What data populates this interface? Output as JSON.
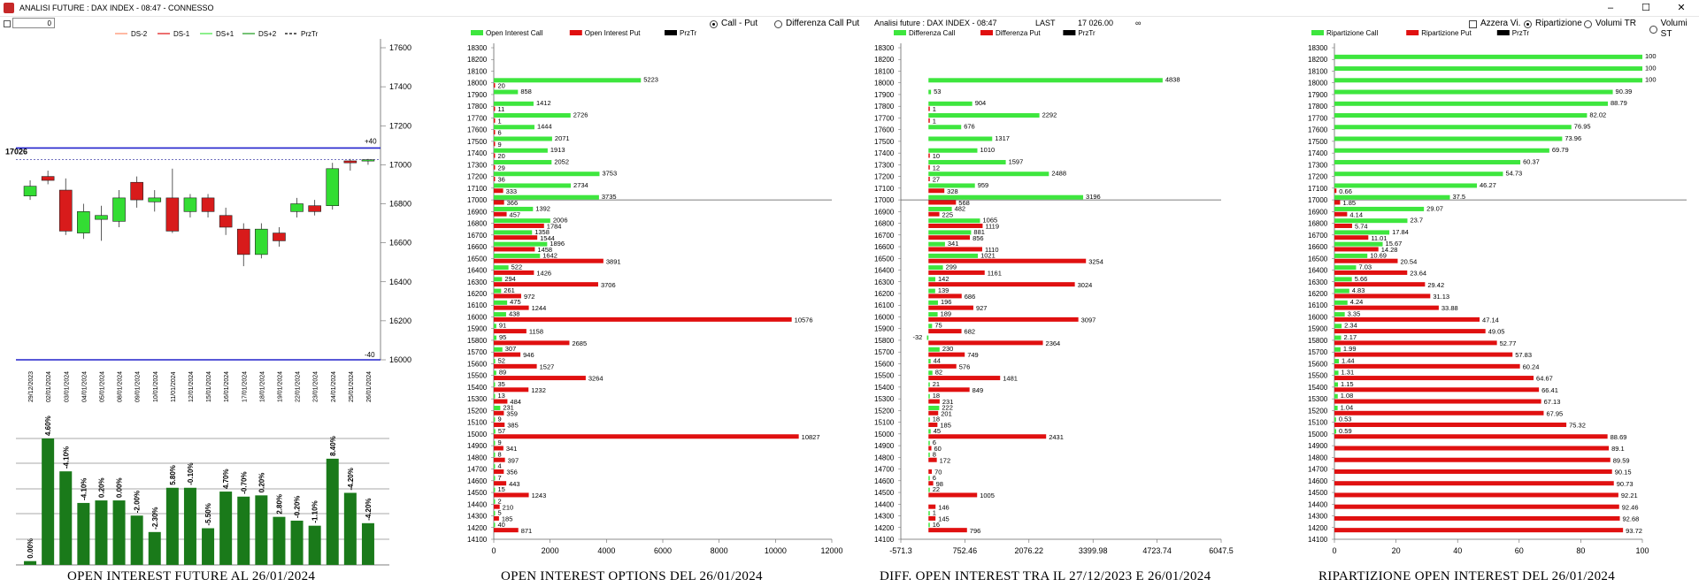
{
  "window": {
    "title": "ANALISI FUTURE : DAX INDEX - 08:47 - CONNESSO",
    "min": "–",
    "max": "☐",
    "close": "✕"
  },
  "topbar": {
    "input_value": "0"
  },
  "radios": {
    "callput": "Call - Put",
    "diffcallput": "Differenza Call Put",
    "azzera": "Azzera Vi.",
    "ripartizione": "Ripartizione",
    "volumi_tr": "Volumi TR",
    "volumi_st": "Volumi ST"
  },
  "header_info": {
    "label": "Analisi future : DAX INDEX - 08:47",
    "last_label": "LAST",
    "last_value": "17 026.00",
    "infinity": "∞"
  },
  "captions": {
    "future": "OPEN INTEREST FUTURE AL 26/01/2024",
    "options": "OPEN INTEREST OPTIONS DEL 26/01/2024",
    "diff": "DIFF. OPEN INTEREST TRA IL 27/12/2023 E 26/01/2024",
    "rip": "RIPARTIZIONE OPEN INTEREST DEL 26/01/2024"
  },
  "colors": {
    "green": "#3ee63e",
    "red": "#e01010",
    "candle_green": "#33dd33",
    "candle_red": "#d81b1b",
    "bar_green": "#1a7a1a",
    "blue": "#2222cc"
  },
  "chart_data": [
    {
      "type": "candlestick",
      "legend": [
        "DS-2",
        "DS-1",
        "DS+1",
        "DS+2",
        "PrzTr"
      ],
      "ylim": [
        16000,
        17600
      ],
      "y_ticks": [
        16000,
        16200,
        16400,
        16600,
        16800,
        17000,
        17200,
        17400,
        17600
      ],
      "price_label": "17026",
      "upper_label": "+40",
      "lower_label": "-40",
      "dates": [
        "29/12/2023",
        "02/01/2024",
        "03/01/2024",
        "04/01/2024",
        "05/01/2024",
        "08/01/2024",
        "09/01/2024",
        "10/01/2024",
        "11/01/2024",
        "12/01/2024",
        "15/01/2024",
        "16/01/2024",
        "17/01/2024",
        "18/01/2024",
        "19/01/2024",
        "22/01/2024",
        "23/01/2024",
        "24/01/2024",
        "25/01/2024",
        "26/01/2024"
      ],
      "candles": [
        {
          "o": 16840,
          "c": 16890,
          "h": 16920,
          "l": 16820
        },
        {
          "o": 16940,
          "c": 16920,
          "h": 16970,
          "l": 16900
        },
        {
          "o": 16870,
          "c": 16660,
          "h": 16930,
          "l": 16640
        },
        {
          "o": 16650,
          "c": 16760,
          "h": 16800,
          "l": 16620
        },
        {
          "o": 16720,
          "c": 16740,
          "h": 16790,
          "l": 16610
        },
        {
          "o": 16710,
          "c": 16830,
          "h": 16870,
          "l": 16680
        },
        {
          "o": 16910,
          "c": 16820,
          "h": 16940,
          "l": 16780
        },
        {
          "o": 16810,
          "c": 16830,
          "h": 16870,
          "l": 16760
        },
        {
          "o": 16830,
          "c": 16660,
          "h": 16980,
          "l": 16650
        },
        {
          "o": 16760,
          "c": 16830,
          "h": 16850,
          "l": 16730
        },
        {
          "o": 16830,
          "c": 16760,
          "h": 16850,
          "l": 16730
        },
        {
          "o": 16740,
          "c": 16680,
          "h": 16780,
          "l": 16640
        },
        {
          "o": 16670,
          "c": 16540,
          "h": 16700,
          "l": 16480
        },
        {
          "o": 16540,
          "c": 16670,
          "h": 16700,
          "l": 16520
        },
        {
          "o": 16650,
          "c": 16610,
          "h": 16680,
          "l": 16580
        },
        {
          "o": 16760,
          "c": 16800,
          "h": 16830,
          "l": 16730
        },
        {
          "o": 16790,
          "c": 16760,
          "h": 16820,
          "l": 16740
        },
        {
          "o": 16790,
          "c": 16980,
          "h": 17010,
          "l": 16770
        },
        {
          "o": 17020,
          "c": 17010,
          "h": 17030,
          "l": 16970
        },
        {
          "o": 17026,
          "c": 17026,
          "h": 17030,
          "l": 17000
        }
      ],
      "oi_labels": [
        "0.00%",
        "4.60%",
        "-4.10%",
        "-4.10%",
        "0.20%",
        "0.00%",
        "-2.00%",
        "-2.30%",
        "5.80%",
        "-0.10%",
        "-5.50%",
        "4.70%",
        "-0.70%",
        "0.20%",
        "2.80%",
        "-0.20%",
        "-1.10%",
        "8.40%",
        "-4.20%",
        "-4.20%"
      ],
      "oi_heights": [
        0.03,
        1.0,
        0.74,
        0.49,
        0.51,
        0.51,
        0.39,
        0.26,
        0.61,
        0.61,
        0.29,
        0.58,
        0.54,
        0.55,
        0.38,
        0.35,
        0.31,
        0.84,
        0.57,
        0.33
      ]
    },
    {
      "type": "bar",
      "title": "Open Interest Options",
      "series": [
        {
          "name": "Open Interest Call"
        },
        {
          "name": "Open Interest Put"
        },
        {
          "name": "PrzTr"
        }
      ],
      "xlim": [
        0,
        12000
      ],
      "x_ticks": [
        0,
        2000,
        4000,
        6000,
        8000,
        10000,
        12000
      ],
      "strikes": [
        18300,
        18200,
        18100,
        18000,
        17900,
        17800,
        17700,
        17600,
        17500,
        17400,
        17300,
        17200,
        17100,
        17000,
        16900,
        16800,
        16700,
        16600,
        16500,
        16400,
        16300,
        16200,
        16100,
        16000,
        15900,
        15800,
        15700,
        15600,
        15500,
        15400,
        15300,
        15200,
        15100,
        15000,
        14900,
        14800,
        14700,
        14600,
        14500,
        14400,
        14300,
        14200,
        14100
      ],
      "call": [
        0,
        0,
        0,
        5223,
        858,
        1412,
        2726,
        1444,
        2071,
        1913,
        2052,
        3753,
        2734,
        3735,
        1392,
        2006,
        1358,
        1896,
        1642,
        522,
        294,
        261,
        475,
        438,
        91,
        95,
        307,
        52,
        89,
        35,
        13,
        231,
        9,
        57,
        9,
        8,
        4,
        7,
        15,
        2,
        5,
        40,
        0
      ],
      "put": [
        0,
        0,
        0,
        20,
        0,
        11,
        1,
        6,
        9,
        20,
        29,
        36,
        333,
        366,
        457,
        1784,
        1544,
        1458,
        3891,
        1426,
        3706,
        972,
        1244,
        10576,
        1158,
        2685,
        946,
        1527,
        3264,
        1232,
        484,
        359,
        385,
        10827,
        341,
        397,
        356,
        443,
        1243,
        210,
        185,
        871,
        0
      ]
    },
    {
      "type": "bar",
      "title": "Differenza",
      "series": [
        {
          "name": "Differenza Call"
        },
        {
          "name": "Differenza Put"
        },
        {
          "name": "PrzTr"
        }
      ],
      "xlim": [
        -571.3,
        6047.5
      ],
      "x_ticks": [
        -571.3,
        752.46,
        2076.22,
        3399.98,
        4723.74,
        6047.5
      ],
      "strikes": [
        18300,
        18200,
        18100,
        18000,
        17900,
        17800,
        17700,
        17600,
        17500,
        17400,
        17300,
        17200,
        17100,
        17000,
        16900,
        16800,
        16700,
        16600,
        16500,
        16400,
        16300,
        16200,
        16100,
        16000,
        15900,
        15800,
        15700,
        15600,
        15500,
        15400,
        15300,
        15200,
        15100,
        15000,
        14900,
        14800,
        14700,
        14600,
        14500,
        14400,
        14300,
        14200,
        14100
      ],
      "call": [
        0,
        0,
        0,
        4838,
        53,
        904,
        2292,
        676,
        1317,
        1010,
        1597,
        2488,
        959,
        3196,
        482,
        1065,
        881,
        341,
        1021,
        299,
        142,
        139,
        196,
        189,
        75,
        -32,
        230,
        44,
        82,
        21,
        18,
        222,
        18,
        45,
        6,
        8,
        0,
        6,
        22,
        0,
        1,
        16,
        0
      ],
      "put": [
        0,
        0,
        0,
        0,
        0,
        1,
        1,
        0,
        0,
        10,
        12,
        27,
        328,
        568,
        225,
        1119,
        856,
        1110,
        3254,
        1161,
        3024,
        686,
        927,
        3097,
        682,
        2364,
        749,
        576,
        1481,
        849,
        231,
        201,
        185,
        2431,
        60,
        172,
        70,
        98,
        1005,
        146,
        145,
        796,
        0
      ]
    },
    {
      "type": "bar",
      "title": "Ripartizione",
      "series": [
        {
          "name": "Ripartizione Call"
        },
        {
          "name": "Ripartizione Put"
        },
        {
          "name": "PrzTr"
        }
      ],
      "xlim": [
        0,
        100
      ],
      "x_ticks": [
        0,
        20,
        40,
        60,
        80,
        100
      ],
      "strikes": [
        18300,
        18200,
        18100,
        18000,
        17900,
        17800,
        17700,
        17600,
        17500,
        17400,
        17300,
        17200,
        17100,
        17000,
        16900,
        16800,
        16700,
        16600,
        16500,
        16400,
        16300,
        16200,
        16100,
        16000,
        15900,
        15800,
        15700,
        15600,
        15500,
        15400,
        15300,
        15200,
        15100,
        15000,
        14900,
        14800,
        14700,
        14600,
        14500,
        14400,
        14300,
        14200,
        14100
      ],
      "call": [
        null,
        100,
        100,
        100,
        90.39,
        88.79,
        82.02,
        76.95,
        73.96,
        69.79,
        60.37,
        54.73,
        46.27,
        37.5,
        29.07,
        23.7,
        17.84,
        15.67,
        10.69,
        7.03,
        5.66,
        4.83,
        4.24,
        3.35,
        2.34,
        2.17,
        1.99,
        1.44,
        1.31,
        1.15,
        1.08,
        1.04,
        0.53,
        0.59,
        null,
        null,
        null,
        null,
        null,
        null,
        null,
        null,
        null
      ],
      "put": [
        null,
        null,
        null,
        null,
        null,
        null,
        null,
        null,
        null,
        null,
        null,
        null,
        0.66,
        1.85,
        4.14,
        5.74,
        11.01,
        14.28,
        20.54,
        23.64,
        29.42,
        31.13,
        33.88,
        47.14,
        49.05,
        52.77,
        57.83,
        60.24,
        64.67,
        66.41,
        67.13,
        67.95,
        75.32,
        88.69,
        89.1,
        89.59,
        90.15,
        90.73,
        92.21,
        92.46,
        92.68,
        93.72,
        null
      ]
    }
  ]
}
